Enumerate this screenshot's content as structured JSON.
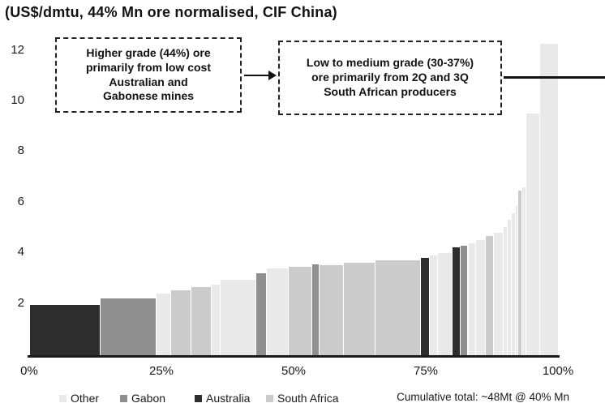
{
  "title": "(US$/dmtu, 44% Mn ore normalised, CIF China)",
  "annotation_box_1": {
    "lines": [
      "Higher grade (44%) ore",
      "primarily from low cost",
      "Australian and",
      "Gabonese mines"
    ]
  },
  "annotation_box_2": {
    "lines": [
      "Low to medium grade (30-37%)",
      "ore primarily from 2Q and 3Q",
      "South African producers"
    ]
  },
  "footer_note": "Cumulative total: ~48Mt @ 40% Mn",
  "legend": [
    {
      "label": "Other",
      "color": "#e9e9e9"
    },
    {
      "label": "Gabon",
      "color": "#8f8f8f"
    },
    {
      "label": "Australia",
      "color": "#2d2d2d"
    },
    {
      "label": "South Africa",
      "color": "#cbcbcb"
    }
  ],
  "chart_data": {
    "type": "bar",
    "subtype": "cost-curve (variable-width step bars)",
    "title": "(US$/dmtu, 44% Mn ore normalised, CIF China)",
    "xlabel": "",
    "ylabel": "",
    "xlim": [
      0,
      100
    ],
    "ylim": [
      0,
      12.6
    ],
    "grid": false,
    "x_tick_pcts": [
      0,
      25,
      50,
      75,
      100
    ],
    "x_tick_labels": [
      "0%",
      "25%",
      "50%",
      "75%",
      "100%"
    ],
    "y_ticks": [
      2,
      4,
      6,
      8,
      10,
      12
    ],
    "legend_position": "bottom-left",
    "category_colors": {
      "Other": "#e9e9e9",
      "Gabon": "#8f8f8f",
      "Australia": "#2d2d2d",
      "South Africa": "#cbcbcb"
    },
    "bars": [
      {
        "from": 0,
        "to": 13.3,
        "value": 2.0,
        "category": "Australia"
      },
      {
        "from": 13.3,
        "to": 23.9,
        "value": 2.25,
        "category": "Gabon"
      },
      {
        "from": 23.9,
        "to": 26.7,
        "value": 2.45,
        "category": "Other"
      },
      {
        "from": 26.7,
        "to": 30.5,
        "value": 2.58,
        "category": "South Africa"
      },
      {
        "from": 30.5,
        "to": 34.4,
        "value": 2.68,
        "category": "South Africa"
      },
      {
        "from": 34.4,
        "to": 36.0,
        "value": 2.8,
        "category": "Other"
      },
      {
        "from": 36.0,
        "to": 42.8,
        "value": 2.98,
        "category": "Other"
      },
      {
        "from": 42.8,
        "to": 44.8,
        "value": 3.25,
        "category": "Gabon"
      },
      {
        "from": 44.8,
        "to": 49.0,
        "value": 3.42,
        "category": "Other"
      },
      {
        "from": 49.0,
        "to": 53.3,
        "value": 3.5,
        "category": "South Africa"
      },
      {
        "from": 53.3,
        "to": 54.8,
        "value": 3.6,
        "category": "Gabon"
      },
      {
        "from": 54.8,
        "to": 59.3,
        "value": 3.56,
        "category": "South Africa"
      },
      {
        "from": 59.3,
        "to": 65.3,
        "value": 3.64,
        "category": "South Africa"
      },
      {
        "from": 65.3,
        "to": 73.9,
        "value": 3.76,
        "category": "South Africa"
      },
      {
        "from": 73.9,
        "to": 75.6,
        "value": 3.85,
        "category": "Australia"
      },
      {
        "from": 75.6,
        "to": 77.2,
        "value": 3.95,
        "category": "Other"
      },
      {
        "from": 77.2,
        "to": 79.9,
        "value": 4.05,
        "category": "Other"
      },
      {
        "from": 79.9,
        "to": 81.4,
        "value": 4.25,
        "category": "Australia"
      },
      {
        "from": 81.4,
        "to": 82.9,
        "value": 4.32,
        "category": "Gabon"
      },
      {
        "from": 82.9,
        "to": 84.4,
        "value": 4.42,
        "category": "Other"
      },
      {
        "from": 84.4,
        "to": 86.2,
        "value": 4.55,
        "category": "Other"
      },
      {
        "from": 86.2,
        "to": 87.7,
        "value": 4.7,
        "category": "South Africa"
      },
      {
        "from": 87.7,
        "to": 89.6,
        "value": 4.85,
        "category": "Other"
      },
      {
        "from": 89.6,
        "to": 90.3,
        "value": 5.05,
        "category": "Other"
      },
      {
        "from": 90.3,
        "to": 91.1,
        "value": 5.35,
        "category": "Other"
      },
      {
        "from": 91.1,
        "to": 91.9,
        "value": 5.6,
        "category": "Other"
      },
      {
        "from": 91.9,
        "to": 92.3,
        "value": 5.9,
        "category": "Other"
      },
      {
        "from": 92.3,
        "to": 93.1,
        "value": 6.5,
        "category": "South Africa"
      },
      {
        "from": 93.1,
        "to": 93.9,
        "value": 6.62,
        "category": "Other"
      },
      {
        "from": 93.9,
        "to": 96.5,
        "value": 9.55,
        "category": "Other"
      },
      {
        "from": 96.5,
        "to": 100,
        "value": 12.3,
        "category": "Other"
      }
    ],
    "annotations": [
      "Higher grade (44%) ore primarily from low cost Australian and Gabonese mines",
      "Low to medium grade (30-37%) ore primarily from 2Q and 3Q South African producers"
    ],
    "footnote": "Cumulative total: ~48Mt @ 40% Mn"
  }
}
